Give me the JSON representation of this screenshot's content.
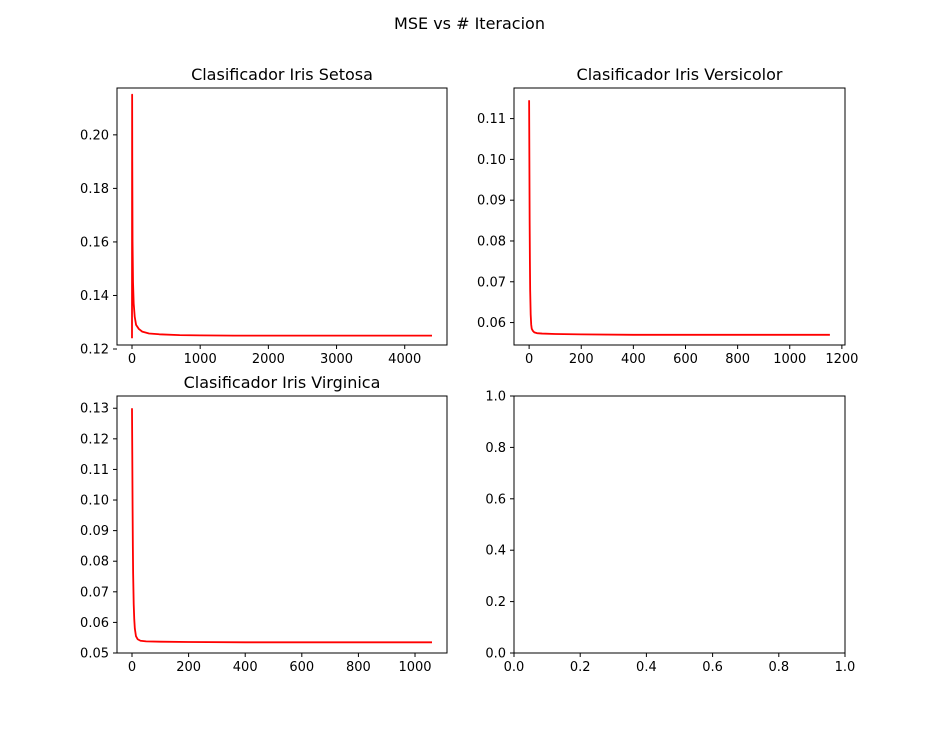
{
  "figure": {
    "suptitle": "MSE vs # Iteracion"
  },
  "colors": {
    "line": "#ff0000",
    "axes": "#000000",
    "background": "#ffffff"
  },
  "chart_data": [
    {
      "type": "line",
      "title": "Clasificador Iris Setosa",
      "xlabel": "",
      "ylabel": "",
      "xlim": [
        -220,
        4620
      ],
      "ylim": [
        0.1215,
        0.2175
      ],
      "xticks": [
        0,
        1000,
        2000,
        3000,
        4000
      ],
      "xtick_labels": [
        "0",
        "1000",
        "2000",
        "3000",
        "4000"
      ],
      "yticks": [
        0.12,
        0.14,
        0.16,
        0.18,
        0.2
      ],
      "ytick_labels": [
        "0.12",
        "0.14",
        "0.16",
        "0.18",
        "0.20"
      ],
      "grid": false,
      "series": [
        {
          "color": "#ff0000",
          "x": [
            0,
            2,
            4,
            8,
            15,
            25,
            40,
            60,
            100,
            150,
            250,
            400,
            700,
            1000,
            1500,
            2000,
            3000,
            4000,
            4400
          ],
          "y": [
            0.124,
            0.215,
            0.19,
            0.16,
            0.145,
            0.137,
            0.132,
            0.129,
            0.1275,
            0.1265,
            0.1258,
            0.1255,
            0.1252,
            0.1251,
            0.125,
            0.125,
            0.125,
            0.125,
            0.125
          ]
        }
      ]
    },
    {
      "type": "line",
      "title": "Clasificador Iris Versicolor",
      "xlabel": "",
      "ylabel": "",
      "xlim": [
        -58,
        1212
      ],
      "ylim": [
        0.0545,
        0.1175
      ],
      "xticks": [
        0,
        200,
        400,
        600,
        800,
        1000,
        1200
      ],
      "xtick_labels": [
        "0",
        "200",
        "400",
        "600",
        "800",
        "1000",
        "1200"
      ],
      "yticks": [
        0.06,
        0.07,
        0.08,
        0.09,
        0.1,
        0.11
      ],
      "ytick_labels": [
        "0.06",
        "0.07",
        "0.08",
        "0.09",
        "0.10",
        "0.11"
      ],
      "grid": false,
      "series": [
        {
          "color": "#ff0000",
          "x": [
            0,
            1,
            2,
            3,
            4,
            6,
            8,
            10,
            14,
            20,
            30,
            50,
            100,
            200,
            400,
            600,
            800,
            1000,
            1154
          ],
          "y": [
            0.1145,
            0.1,
            0.085,
            0.075,
            0.068,
            0.062,
            0.0595,
            0.0585,
            0.058,
            0.0576,
            0.0574,
            0.0573,
            0.0572,
            0.0571,
            0.057,
            0.057,
            0.057,
            0.057,
            0.057
          ]
        }
      ]
    },
    {
      "type": "line",
      "title": "Clasificador Iris Virginica",
      "xlabel": "",
      "ylabel": "",
      "xlim": [
        -53,
        1113
      ],
      "ylim": [
        0.05,
        0.134
      ],
      "xticks": [
        0,
        200,
        400,
        600,
        800,
        1000
      ],
      "xtick_labels": [
        "0",
        "200",
        "400",
        "600",
        "800",
        "1000"
      ],
      "yticks": [
        0.05,
        0.06,
        0.07,
        0.08,
        0.09,
        0.1,
        0.11,
        0.12,
        0.13
      ],
      "ytick_labels": [
        "0.05",
        "0.06",
        "0.07",
        "0.08",
        "0.09",
        "0.10",
        "0.11",
        "0.12",
        "0.13"
      ],
      "grid": false,
      "series": [
        {
          "color": "#ff0000",
          "x": [
            0,
            1,
            2,
            3,
            4,
            6,
            8,
            10,
            14,
            20,
            30,
            50,
            100,
            200,
            400,
            600,
            800,
            1000,
            1060
          ],
          "y": [
            0.13,
            0.115,
            0.098,
            0.085,
            0.076,
            0.066,
            0.061,
            0.058,
            0.0555,
            0.0545,
            0.054,
            0.0538,
            0.0537,
            0.0536,
            0.0535,
            0.0535,
            0.0535,
            0.0535,
            0.0535
          ]
        }
      ]
    },
    {
      "type": "line",
      "title": "",
      "xlabel": "",
      "ylabel": "",
      "xlim": [
        0,
        1
      ],
      "ylim": [
        0,
        1
      ],
      "xticks": [
        0,
        0.2,
        0.4,
        0.6,
        0.8,
        1.0
      ],
      "xtick_labels": [
        "0.0",
        "0.2",
        "0.4",
        "0.6",
        "0.8",
        "1.0"
      ],
      "yticks": [
        0,
        0.2,
        0.4,
        0.6,
        0.8,
        1.0
      ],
      "ytick_labels": [
        "0.0",
        "0.2",
        "0.4",
        "0.6",
        "0.8",
        "1.0"
      ],
      "grid": false,
      "series": []
    }
  ]
}
